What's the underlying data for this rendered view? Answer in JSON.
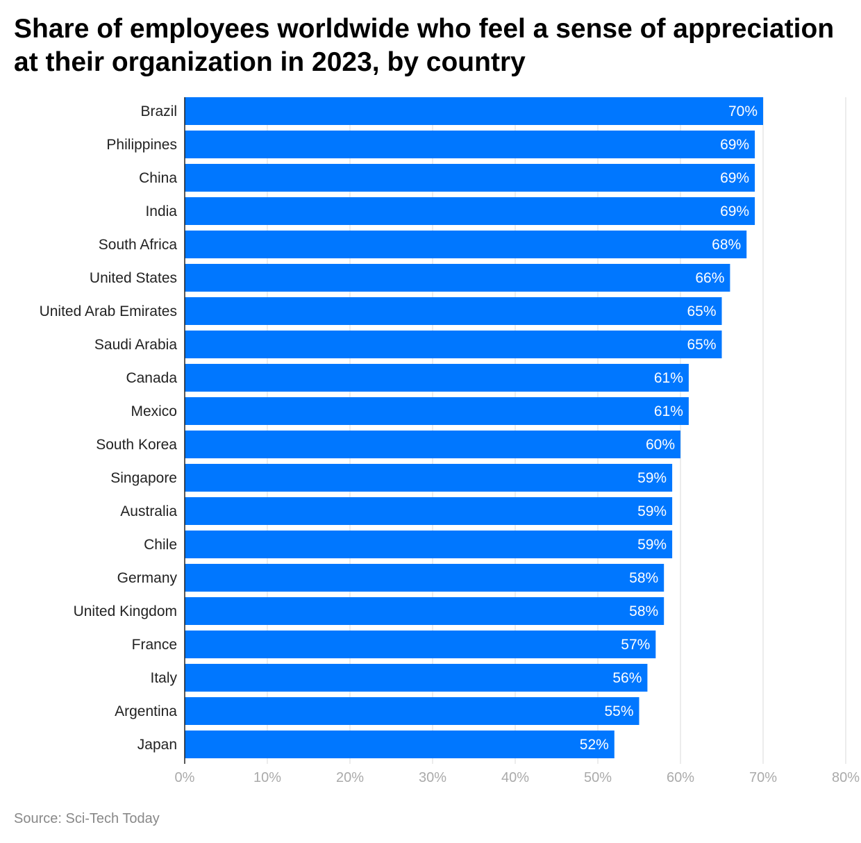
{
  "title": "Share of employees worldwide who feel a sense of appreciation at their organization in 2023, by country",
  "source": "Source: Sci-Tech Today",
  "colors": {
    "bar": "#0077ff",
    "bar_label": "#ffffff",
    "grid": "#e6e6e6",
    "axis": "#222222",
    "tick": "#aaaaaa",
    "category": "#222222"
  },
  "chart_data": {
    "type": "bar",
    "orientation": "horizontal",
    "title": "Share of employees worldwide who feel a sense of appreciation at their organization in 2023, by country",
    "xlabel": "",
    "ylabel": "",
    "xlim": [
      0,
      80
    ],
    "x_ticks": [
      0,
      10,
      20,
      30,
      40,
      50,
      60,
      70,
      80
    ],
    "x_tick_labels": [
      "0%",
      "10%",
      "20%",
      "30%",
      "40%",
      "50%",
      "60%",
      "70%",
      "80%"
    ],
    "categories": [
      "Brazil",
      "Philippines",
      "China",
      "India",
      "South Africa",
      "United States",
      "United Arab Emirates",
      "Saudi Arabia",
      "Canada",
      "Mexico",
      "South Korea",
      "Singapore",
      "Australia",
      "Chile",
      "Germany",
      "United Kingdom",
      "France",
      "Italy",
      "Argentina",
      "Japan"
    ],
    "values": [
      70,
      69,
      69,
      69,
      68,
      66,
      65,
      65,
      61,
      61,
      60,
      59,
      59,
      59,
      58,
      58,
      57,
      56,
      55,
      52
    ],
    "value_labels": [
      "70%",
      "69%",
      "69%",
      "69%",
      "68%",
      "66%",
      "65%",
      "65%",
      "61%",
      "61%",
      "60%",
      "59%",
      "59%",
      "59%",
      "58%",
      "58%",
      "57%",
      "56%",
      "55%",
      "52%"
    ],
    "grid": true,
    "legend": "none"
  }
}
